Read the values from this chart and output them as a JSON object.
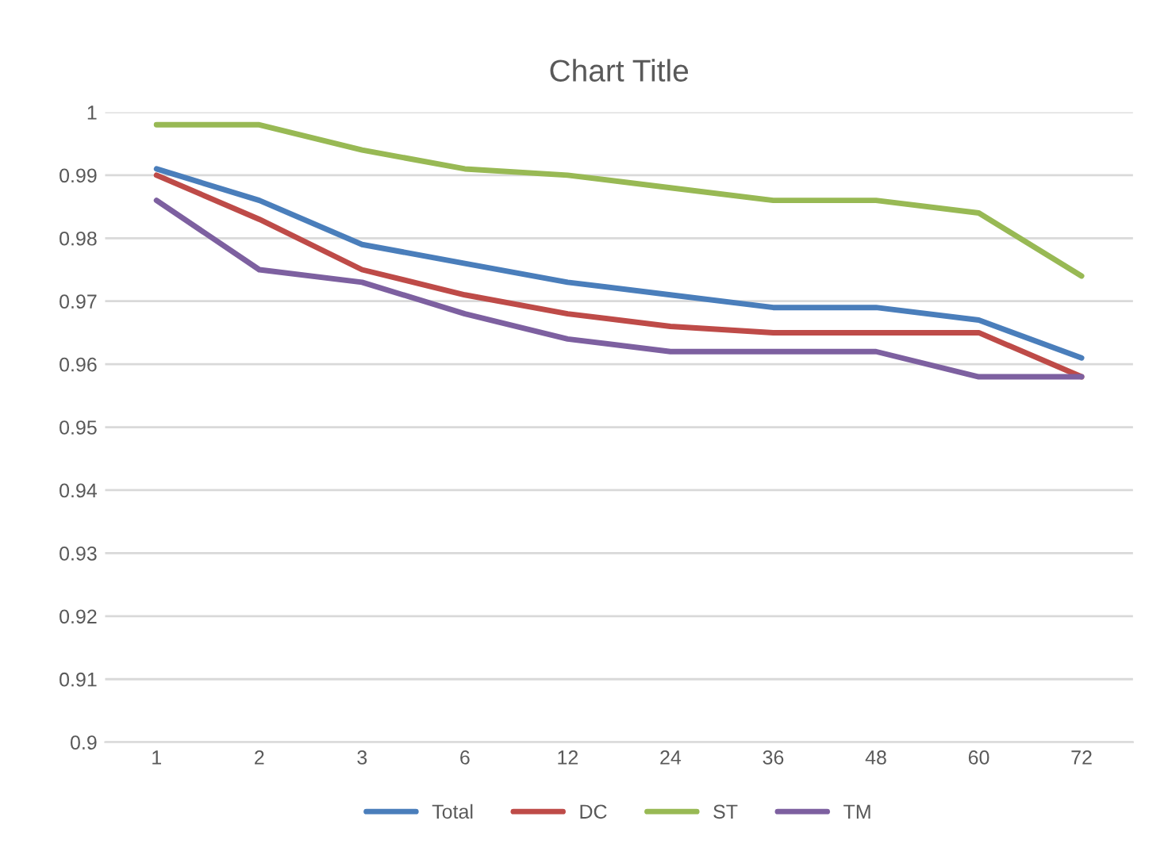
{
  "chart_data": {
    "type": "line",
    "title": "Chart Title",
    "categories": [
      "1",
      "2",
      "3",
      "6",
      "12",
      "24",
      "36",
      "48",
      "60",
      "72"
    ],
    "series": [
      {
        "name": "Total",
        "color": "#4a7ebb",
        "values": [
          0.991,
          0.986,
          0.979,
          0.976,
          0.973,
          0.971,
          0.969,
          0.969,
          0.967,
          0.961
        ]
      },
      {
        "name": "DC",
        "color": "#be4b48",
        "values": [
          0.99,
          0.983,
          0.975,
          0.971,
          0.968,
          0.966,
          0.965,
          0.965,
          0.965,
          0.958
        ]
      },
      {
        "name": "ST",
        "color": "#98b954",
        "values": [
          0.998,
          0.998,
          0.994,
          0.991,
          0.99,
          0.988,
          0.986,
          0.986,
          0.984,
          0.974
        ]
      },
      {
        "name": "TM",
        "color": "#7d60a0",
        "values": [
          0.986,
          0.975,
          0.973,
          0.968,
          0.964,
          0.962,
          0.962,
          0.962,
          0.958,
          0.958
        ]
      }
    ],
    "ylim": [
      0.9,
      1.0
    ],
    "yticks": [
      0.9,
      0.91,
      0.92,
      0.93,
      0.94,
      0.95,
      0.96,
      0.97,
      0.98,
      0.99,
      1
    ],
    "grid": "y",
    "legend": "bottom",
    "marker": "none",
    "line_style": "solid"
  }
}
